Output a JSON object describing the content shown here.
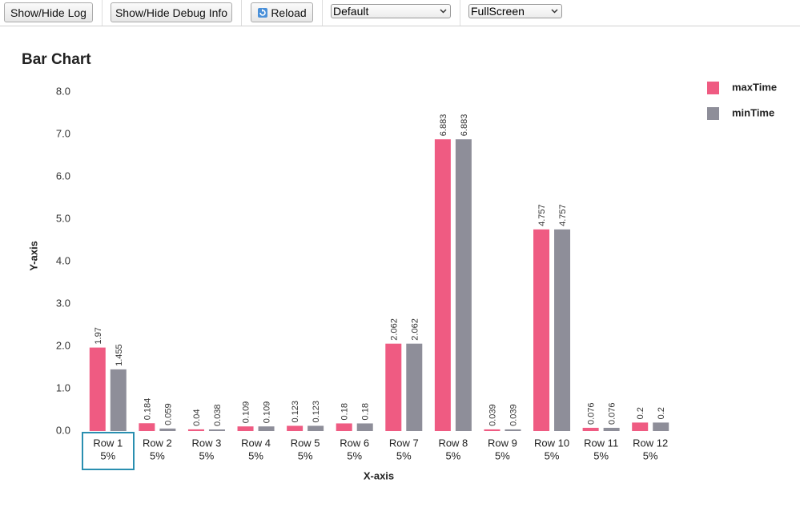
{
  "toolbar": {
    "buttons": [
      "Show/Hide Log",
      "Show/Hide Debug Info",
      "Reload"
    ],
    "selects": [
      "Default",
      "FullScreen"
    ]
  },
  "chart_data": {
    "type": "bar",
    "title": "Bar Chart",
    "x_label": "X-axis",
    "y_label": "Y-axis",
    "categories": [
      "Row 1",
      "Row 2",
      "Row 3",
      "Row 4",
      "Row 5",
      "Row 6",
      "Row 7",
      "Row 8",
      "Row 9",
      "Row 10",
      "Row 11",
      "Row 12"
    ],
    "category_notes": [
      "5%",
      "5%",
      "5%",
      "5%",
      "5%",
      "5%",
      "5%",
      "5%",
      "5%",
      "5%",
      "5%",
      "5%"
    ],
    "series": [
      {
        "name": "maxTime",
        "color": "#ef5b82",
        "values": [
          1.97,
          0.184,
          0.04,
          0.109,
          0.123,
          0.18,
          2.062,
          6.883,
          0.039,
          4.757,
          0.076,
          0.2
        ]
      },
      {
        "name": "minTime",
        "color": "#8e8e99",
        "values": [
          1.455,
          0.059,
          0.038,
          0.109,
          0.123,
          0.18,
          2.062,
          6.883,
          0.039,
          4.757,
          0.076,
          0.2
        ]
      }
    ],
    "ylim": [
      0,
      8
    ],
    "yticks": [
      {
        "value": 0,
        "label": "0.0"
      },
      {
        "value": 1,
        "label": "1.0"
      },
      {
        "value": 2,
        "label": "2.0"
      },
      {
        "value": 3,
        "label": "3.0"
      },
      {
        "value": 4,
        "label": "4.0"
      },
      {
        "value": 5,
        "label": "5.0"
      },
      {
        "value": 6,
        "label": "6.0"
      },
      {
        "value": 7,
        "label": "7.0"
      },
      {
        "value": 8,
        "label": "8.0"
      }
    ],
    "grid": false,
    "legend": "top-right"
  }
}
